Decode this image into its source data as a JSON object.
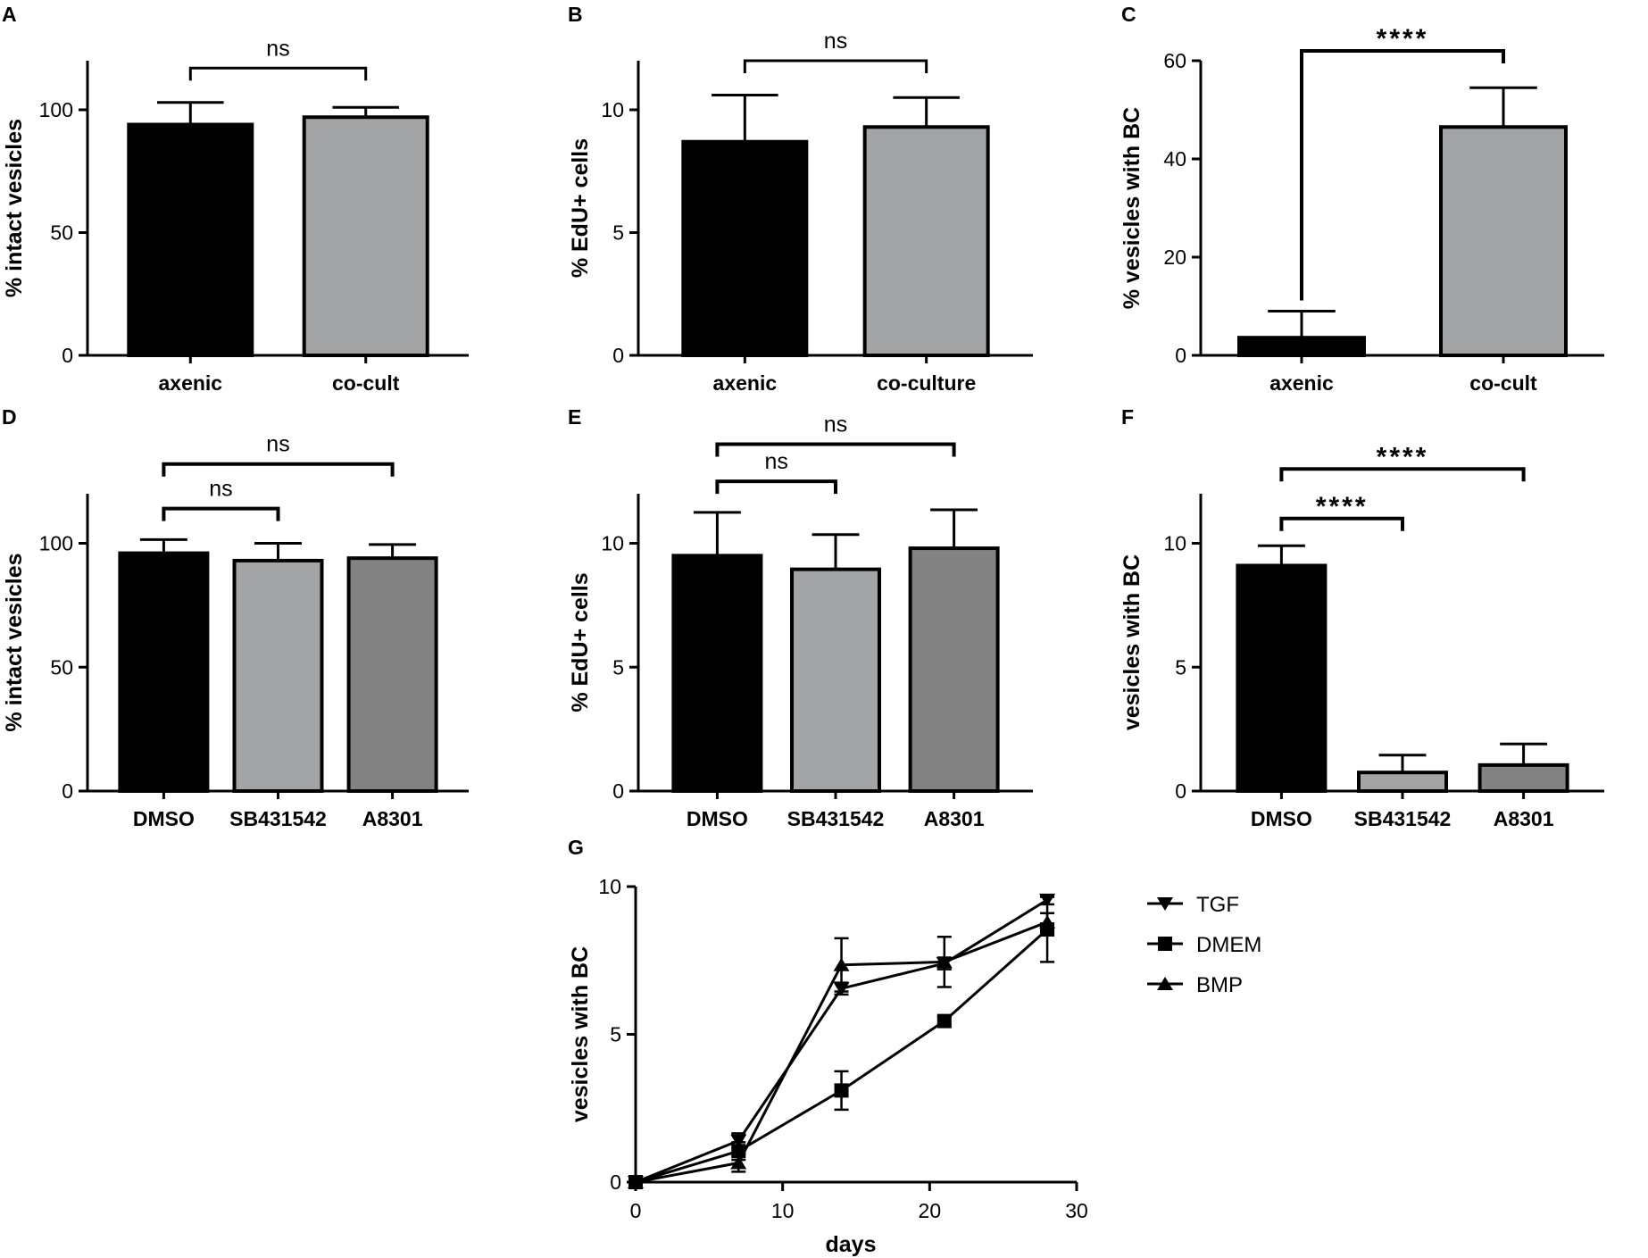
{
  "figure": {
    "panels": [
      {
        "letter": "A"
      },
      {
        "letter": "B"
      },
      {
        "letter": "C"
      },
      {
        "letter": "D"
      },
      {
        "letter": "E"
      },
      {
        "letter": "F"
      },
      {
        "letter": "G"
      }
    ]
  },
  "colors": {
    "black": "#000000",
    "light_gray": "#a3a4a6",
    "dark_gray": "#828282",
    "axis": "#000000"
  },
  "chart_data": [
    {
      "panel": "A",
      "type": "bar",
      "ylabel": "% intact vesicles",
      "ylim": [
        0,
        120
      ],
      "yticks": [
        0,
        50,
        100
      ],
      "ytick_labels": [
        "0",
        "50",
        "100"
      ],
      "categories": [
        "axenic",
        "co-cult"
      ],
      "values": [
        94,
        97
      ],
      "errors": [
        9,
        4
      ],
      "bar_colors": [
        "black",
        "light_gray"
      ],
      "significance": [
        {
          "from": 0,
          "to": 1,
          "label": "ns",
          "y": 117
        }
      ]
    },
    {
      "panel": "B",
      "type": "bar",
      "ylabel": "% EdU+ cells",
      "ylim": [
        0,
        12
      ],
      "yticks": [
        0,
        5,
        10
      ],
      "ytick_labels": [
        "0",
        "5",
        "10"
      ],
      "categories": [
        "axenic",
        "co-culture"
      ],
      "values": [
        8.7,
        9.3
      ],
      "errors": [
        1.9,
        1.2
      ],
      "bar_colors": [
        "black",
        "light_gray"
      ],
      "significance": [
        {
          "from": 0,
          "to": 1,
          "label": "ns",
          "y": 12.0
        }
      ]
    },
    {
      "panel": "C",
      "type": "bar",
      "ylabel": "% vesicles with BC",
      "ylim": [
        0,
        60
      ],
      "yticks": [
        0,
        20,
        40,
        60
      ],
      "ytick_labels": [
        "0",
        "20",
        "40",
        "60"
      ],
      "categories": [
        "axenic",
        "co-cult"
      ],
      "values": [
        3.6,
        46.5
      ],
      "errors": [
        5.4,
        8.0
      ],
      "bar_colors": [
        "black",
        "light_gray"
      ],
      "significance": [
        {
          "from": 0,
          "to": 1,
          "label": "****",
          "y": 62
        }
      ]
    },
    {
      "panel": "D",
      "type": "bar",
      "ylabel": "% intact vesicles",
      "ylim": [
        0,
        120
      ],
      "yticks": [
        0,
        50,
        100
      ],
      "ytick_labels": [
        "0",
        "50",
        "100"
      ],
      "categories": [
        "DMSO",
        "SB431542",
        "A8301"
      ],
      "values": [
        96,
        93,
        94
      ],
      "errors": [
        5.5,
        7,
        5.5
      ],
      "bar_colors": [
        "black",
        "light_gray",
        "dark_gray"
      ],
      "significance": [
        {
          "from": 0,
          "to": 1,
          "label": "ns",
          "y": 114
        },
        {
          "from": 0,
          "to": 2,
          "label": "ns",
          "y": 132
        }
      ]
    },
    {
      "panel": "E",
      "type": "bar",
      "ylabel": "% EdU+ cells",
      "ylim": [
        0,
        12
      ],
      "yticks": [
        0,
        5,
        10
      ],
      "ytick_labels": [
        "0",
        "5",
        "10"
      ],
      "categories": [
        "DMSO",
        "SB431542",
        "A8301"
      ],
      "values": [
        9.5,
        8.95,
        9.8
      ],
      "errors": [
        1.75,
        1.4,
        1.55
      ],
      "bar_colors": [
        "black",
        "light_gray",
        "dark_gray"
      ],
      "significance": [
        {
          "from": 0,
          "to": 1,
          "label": "ns",
          "y": 12.5
        },
        {
          "from": 0,
          "to": 2,
          "label": "ns",
          "y": 14.0
        }
      ]
    },
    {
      "panel": "F",
      "type": "bar",
      "ylabel": "vesicles with BC",
      "ylim": [
        0,
        12
      ],
      "yticks": [
        0,
        5,
        10
      ],
      "ytick_labels": [
        "0",
        "5",
        "10"
      ],
      "categories": [
        "DMSO",
        "SB431542",
        "A8301"
      ],
      "values": [
        9.1,
        0.75,
        1.05
      ],
      "errors": [
        0.8,
        0.7,
        0.85
      ],
      "bar_colors": [
        "black",
        "light_gray",
        "dark_gray"
      ],
      "significance": [
        {
          "from": 0,
          "to": 1,
          "label": "****",
          "y": 11.0
        },
        {
          "from": 0,
          "to": 2,
          "label": "****",
          "y": 13.0
        }
      ]
    },
    {
      "panel": "G",
      "type": "line",
      "xlabel": "days",
      "ylabel": "vesicles with BC",
      "xlim": [
        0,
        30
      ],
      "ylim": [
        0,
        10
      ],
      "xticks": [
        0,
        10,
        20,
        30
      ],
      "xtick_labels": [
        "0",
        "10",
        "20",
        "30"
      ],
      "yticks": [
        0,
        5,
        10
      ],
      "ytick_labels": [
        "0",
        "5",
        "10"
      ],
      "series": [
        {
          "name": "TGF",
          "marker": "triangle-down",
          "x": [
            0,
            7,
            14,
            21,
            28
          ],
          "y": [
            0,
            1.4,
            6.55,
            7.4,
            9.55
          ],
          "err": [
            0,
            0.25,
            0.2,
            0.2,
            0.15
          ]
        },
        {
          "name": "DMEM",
          "marker": "square",
          "x": [
            0,
            7,
            14,
            21,
            28
          ],
          "y": [
            0,
            1.05,
            3.1,
            5.45,
            8.55
          ],
          "err": [
            0,
            0.3,
            0.65,
            0.15,
            1.1
          ]
        },
        {
          "name": "BMP",
          "marker": "triangle-up",
          "x": [
            0,
            7,
            14,
            21,
            28
          ],
          "y": [
            0,
            0.65,
            7.35,
            7.45,
            8.8
          ],
          "err": [
            0,
            0.3,
            0.9,
            0.85,
            0.3
          ]
        }
      ]
    }
  ]
}
